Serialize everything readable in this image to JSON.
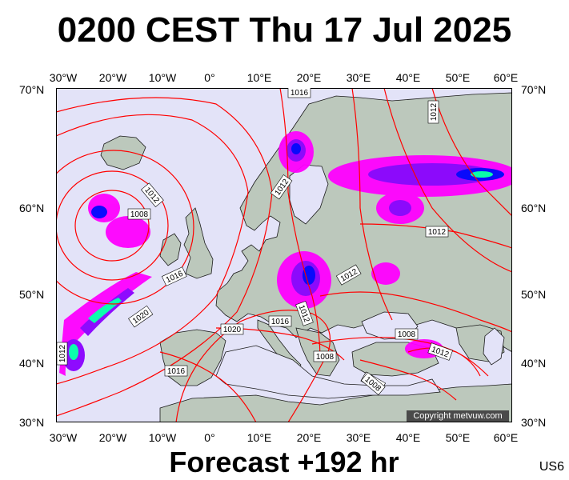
{
  "title": "0200 CEST Thu 17 Jul 2025",
  "footer": "Forecast +192 hr",
  "model_code": "US6",
  "copyright": "Copyright metvuw.com",
  "axes": {
    "lon_ticks": [
      "30°W",
      "20°W",
      "10°W",
      "0°",
      "10°E",
      "20°E",
      "30°E",
      "40°E",
      "50°E",
      "60°E"
    ],
    "lat_ticks": [
      "70°N",
      "60°N",
      "50°N",
      "40°N",
      "30°N"
    ]
  },
  "isobar_labels": [
    {
      "text": "1012"
    },
    {
      "text": "1008"
    },
    {
      "text": "1016"
    },
    {
      "text": "1020"
    },
    {
      "text": "1012"
    },
    {
      "text": "1012"
    },
    {
      "text": "1016"
    },
    {
      "text": "1020"
    },
    {
      "text": "1012"
    },
    {
      "text": "1008"
    },
    {
      "text": "1016"
    },
    {
      "text": "1008"
    },
    {
      "text": "1012"
    },
    {
      "text": "1012"
    },
    {
      "text": "1008"
    },
    {
      "text": "1012"
    },
    {
      "text": "1008"
    },
    {
      "text": "1016"
    },
    {
      "text": "1012"
    }
  ],
  "colors": {
    "background": "#e3e3f8",
    "land": "#bcc8bc",
    "isobar": "#ff0000",
    "precip_light": "#ff00ff",
    "precip_mid": "#8a00ff",
    "precip_heavy": "#0000ff",
    "precip_extreme": "#00ffaa"
  }
}
